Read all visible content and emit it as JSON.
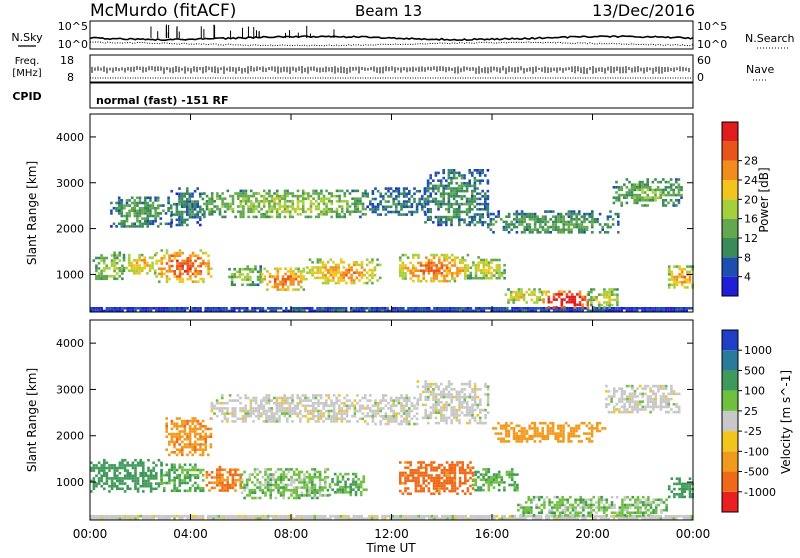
{
  "header": {
    "station": "McMurdo (fitACF)",
    "beam": "Beam 13",
    "date": "13/Dec/2016"
  },
  "top_panel": {
    "nsky_label": "N.Sky",
    "nsearch_label": "N.Search",
    "scale_left_top": "10^5",
    "scale_left_bottom": "10^0",
    "scale_right_top": "10^5",
    "scale_right_bottom": "10^0",
    "freq_label": "Freq.",
    "freq_unit": "[MHz]",
    "freq_ticks": [
      "18",
      "8"
    ],
    "nave_label": "Nave",
    "nave_ticks": [
      "60",
      "0"
    ],
    "cpid_label": "CPID",
    "cpid_value": "normal (fast) -151 RF"
  },
  "x_axis": {
    "title": "Time UT",
    "tick_labels": [
      "00:00",
      "04:00",
      "08:00",
      "12:00",
      "16:00",
      "20:00",
      "00:00"
    ]
  },
  "power_colorbar": {
    "label": "Power [dB]",
    "tick_labels": [
      "4",
      "8",
      "12",
      "16",
      "20",
      "24",
      "28"
    ],
    "colors": [
      "#1f1fd6",
      "#1d4fb0",
      "#3a8a5a",
      "#63a84e",
      "#a6cf3c",
      "#f2c51c",
      "#f28c1e",
      "#e8541a",
      "#e01c1c"
    ]
  },
  "velocity_colorbar": {
    "label": "Velocity [m s^-1]",
    "tick_labels": [
      "1000",
      "500",
      "100",
      "25",
      "-25",
      "-100",
      "-500",
      "-1000"
    ],
    "colors": [
      "#1f3fc6",
      "#2a7a9a",
      "#3f9a5a",
      "#6fc03e",
      "#c8c8c8",
      "#f2c51c",
      "#f29a1e",
      "#ef6a18",
      "#e82020"
    ]
  },
  "chart_data": [
    {
      "type": "heatmap",
      "title": "",
      "xlabel": "Time UT",
      "ylabel": "Slant Range [km]",
      "xlim": [
        0,
        24
      ],
      "ylim": [
        180,
        4500
      ],
      "yticks": [
        1000,
        2000,
        3000,
        4000
      ],
      "colorbar": "Power [dB]",
      "regions": [
        {
          "t": [
            0.0,
            24.0
          ],
          "r": [
            230,
            290
          ],
          "value": 6
        },
        {
          "t": [
            0.1,
            1.3
          ],
          "r": [
            900,
            1500
          ],
          "value": 14
        },
        {
          "t": [
            1.3,
            2.6
          ],
          "r": [
            1000,
            1450
          ],
          "value": 18
        },
        {
          "t": [
            2.6,
            4.8
          ],
          "r": [
            850,
            1550
          ],
          "value": 24
        },
        {
          "t": [
            5.5,
            6.8
          ],
          "r": [
            800,
            1200
          ],
          "value": 14
        },
        {
          "t": [
            6.8,
            8.6
          ],
          "r": [
            650,
            1150
          ],
          "value": 22
        },
        {
          "t": [
            8.6,
            11.5
          ],
          "r": [
            800,
            1350
          ],
          "value": 20
        },
        {
          "t": [
            12.3,
            15.0
          ],
          "r": [
            850,
            1450
          ],
          "value": 22
        },
        {
          "t": [
            15.0,
            16.5
          ],
          "r": [
            900,
            1400
          ],
          "value": 16
        },
        {
          "t": [
            16.5,
            18.0
          ],
          "r": [
            400,
            700
          ],
          "value": 18
        },
        {
          "t": [
            18.0,
            19.8
          ],
          "r": [
            260,
            650
          ],
          "value": 29
        },
        {
          "t": [
            19.8,
            21.0
          ],
          "r": [
            300,
            700
          ],
          "value": 16
        },
        {
          "t": [
            23.0,
            24.0
          ],
          "r": [
            700,
            1200
          ],
          "value": 20
        },
        {
          "t": [
            0.8,
            3.2
          ],
          "r": [
            2050,
            2700
          ],
          "value": 10
        },
        {
          "t": [
            3.2,
            4.5
          ],
          "r": [
            2100,
            2900
          ],
          "value": 8
        },
        {
          "t": [
            4.5,
            11.0
          ],
          "r": [
            2250,
            2850
          ],
          "value": 14
        },
        {
          "t": [
            11.0,
            13.3
          ],
          "r": [
            2300,
            2900
          ],
          "value": 8
        },
        {
          "t": [
            13.3,
            15.8
          ],
          "r": [
            2100,
            3300
          ],
          "value": 9
        },
        {
          "t": [
            15.8,
            21.0
          ],
          "r": [
            1900,
            2400
          ],
          "value": 10
        },
        {
          "t": [
            20.8,
            23.5
          ],
          "r": [
            2500,
            3100
          ],
          "value": 12
        }
      ]
    },
    {
      "type": "heatmap",
      "title": "",
      "xlabel": "Time UT",
      "ylabel": "Slant Range [km]",
      "xlim": [
        0,
        24
      ],
      "ylim": [
        180,
        4500
      ],
      "yticks": [
        1000,
        2000,
        3000,
        4000
      ],
      "colorbar": "Velocity [m s^-1]",
      "regions": [
        {
          "t": [
            0.0,
            24.0
          ],
          "r": [
            230,
            290
          ],
          "value": 0
        },
        {
          "t": [
            0.0,
            2.8
          ],
          "r": [
            800,
            1500
          ],
          "value": 150
        },
        {
          "t": [
            2.8,
            4.5
          ],
          "r": [
            800,
            1400
          ],
          "value": 60
        },
        {
          "t": [
            4.6,
            6.0
          ],
          "r": [
            800,
            1350
          ],
          "value": -300
        },
        {
          "t": [
            6.0,
            9.5
          ],
          "r": [
            650,
            1300
          ],
          "value": 40
        },
        {
          "t": [
            9.5,
            11.0
          ],
          "r": [
            750,
            1200
          ],
          "value": 60
        },
        {
          "t": [
            12.3,
            15.2
          ],
          "r": [
            750,
            1450
          ],
          "value": -400
        },
        {
          "t": [
            15.2,
            17.0
          ],
          "r": [
            850,
            1300
          ],
          "value": 60
        },
        {
          "t": [
            17.0,
            23.0
          ],
          "r": [
            280,
            700
          ],
          "value": 40
        },
        {
          "t": [
            23.0,
            24.0
          ],
          "r": [
            700,
            1100
          ],
          "value": 150
        },
        {
          "t": [
            3.0,
            4.8
          ],
          "r": [
            1600,
            2400
          ],
          "value": -200
        },
        {
          "t": [
            4.8,
            11.0
          ],
          "r": [
            2300,
            2900
          ],
          "value": 0
        },
        {
          "t": [
            11.0,
            13.0
          ],
          "r": [
            2250,
            2900
          ],
          "value": 0
        },
        {
          "t": [
            13.0,
            15.8
          ],
          "r": [
            2300,
            3200
          ],
          "value": 0
        },
        {
          "t": [
            16.0,
            20.5
          ],
          "r": [
            1900,
            2300
          ],
          "value": -150
        },
        {
          "t": [
            20.5,
            23.5
          ],
          "r": [
            2500,
            3100
          ],
          "value": 0
        }
      ]
    }
  ]
}
